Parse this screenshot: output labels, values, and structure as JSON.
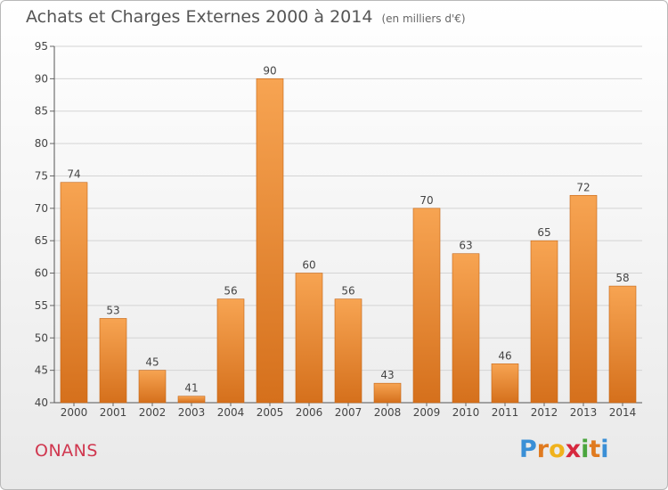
{
  "header": {
    "title": "Achats et Charges Externes 2000 à 2014",
    "subtitle": "(en milliers d'€)"
  },
  "footer": {
    "city": "ONANS",
    "logo_letters": [
      "P",
      "r",
      "o",
      "x",
      "i",
      "t",
      "i"
    ],
    "logo_colors": [
      "#3a8fd6",
      "#e07a1f",
      "#f0b21c",
      "#d6283e",
      "#4aa53d",
      "#e07a1f",
      "#3a8fd6"
    ]
  },
  "chart_data": {
    "type": "bar",
    "title": "Achats et Charges Externes 2000 à 2014",
    "subtitle": "(en milliers d'€)",
    "xlabel": "",
    "ylabel": "",
    "categories": [
      "2000",
      "2001",
      "2002",
      "2003",
      "2004",
      "2005",
      "2006",
      "2007",
      "2008",
      "2009",
      "2010",
      "2011",
      "2012",
      "2013",
      "2014"
    ],
    "values": [
      74,
      53,
      45,
      41,
      56,
      90,
      60,
      56,
      43,
      70,
      63,
      46,
      65,
      72,
      58
    ],
    "ylim": [
      40,
      95
    ],
    "yticks": [
      40,
      45,
      50,
      55,
      60,
      65,
      70,
      75,
      80,
      85,
      90,
      95
    ],
    "grid": true,
    "bar_color": "#f0903a",
    "bar_color_light": "#f7a452",
    "bar_color_dark": "#d5701c"
  }
}
